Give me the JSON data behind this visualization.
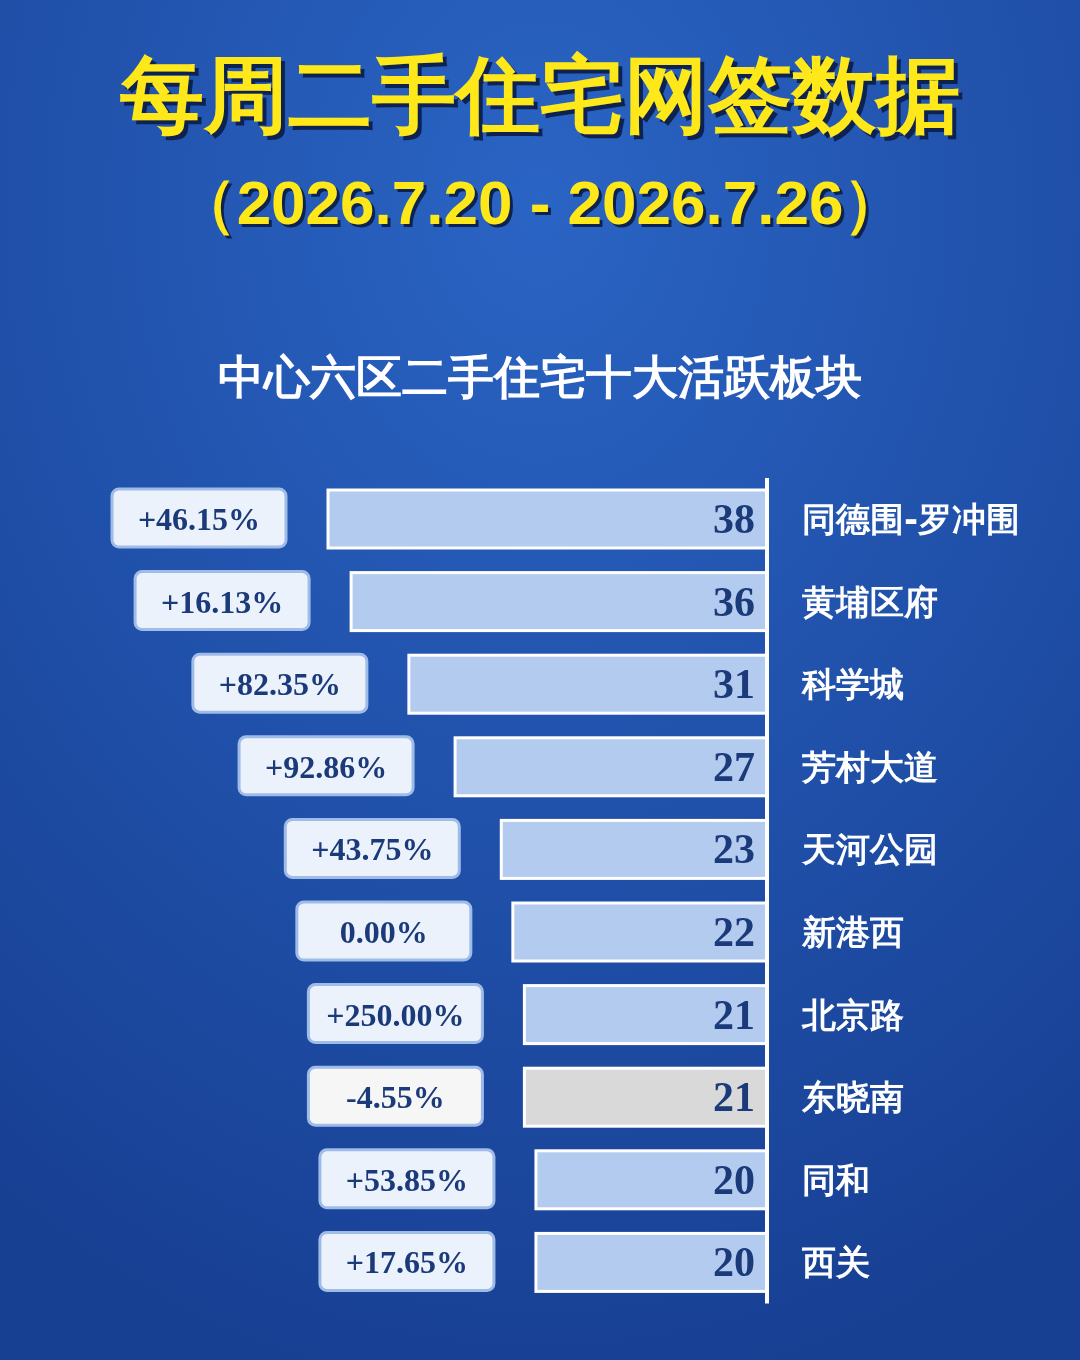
{
  "chart_data": {
    "type": "bar",
    "orientation": "horizontal",
    "title": "每周二手住宅网签数据",
    "subtitle": "（2026.7.20 - 2026.7.26）",
    "categories": [
      "同德围-罗冲围",
      "黄埔区府",
      "科学城",
      "芳村大道",
      "天河公园",
      "新港西",
      "北京路",
      "东晓南",
      "同和",
      "西关"
    ],
    "values": [
      38,
      36,
      31,
      27,
      23,
      22,
      21,
      21,
      20,
      20
    ],
    "colors": [
      "#b3cbee",
      "#b3cbee",
      "#b3cbee",
      "#b3cbee",
      "#b3cbee",
      "#b3cbee",
      "#b3cbee",
      "#d9d9d9",
      "#b3cbee",
      "#b3cbee"
    ],
    "data_labels": true,
    "annotations": [
      "中心六区二手住宅十大活跃板块",
      {
        "text": "+46.15%",
        "x": 38,
        "y": "同德围-罗冲围"
      },
      {
        "text": "+16.13%",
        "x": 36,
        "y": "黄埔区府"
      },
      {
        "text": "+82.35%",
        "x": 31,
        "y": "科学城"
      },
      {
        "text": "+92.86%",
        "x": 27,
        "y": "芳村大道"
      },
      {
        "text": "+43.75%",
        "x": 23,
        "y": "天河公园"
      },
      {
        "text": "0.00%",
        "x": 22,
        "y": "新港西"
      },
      {
        "text": "+250.00%",
        "x": 21,
        "y": "北京路"
      },
      {
        "text": "-4.55%",
        "x": 21,
        "y": "东晓南"
      },
      {
        "text": "+53.85%",
        "x": 20,
        "y": "同和"
      },
      {
        "text": "+17.65%",
        "x": 20,
        "y": "西关"
      }
    ]
  }
}
